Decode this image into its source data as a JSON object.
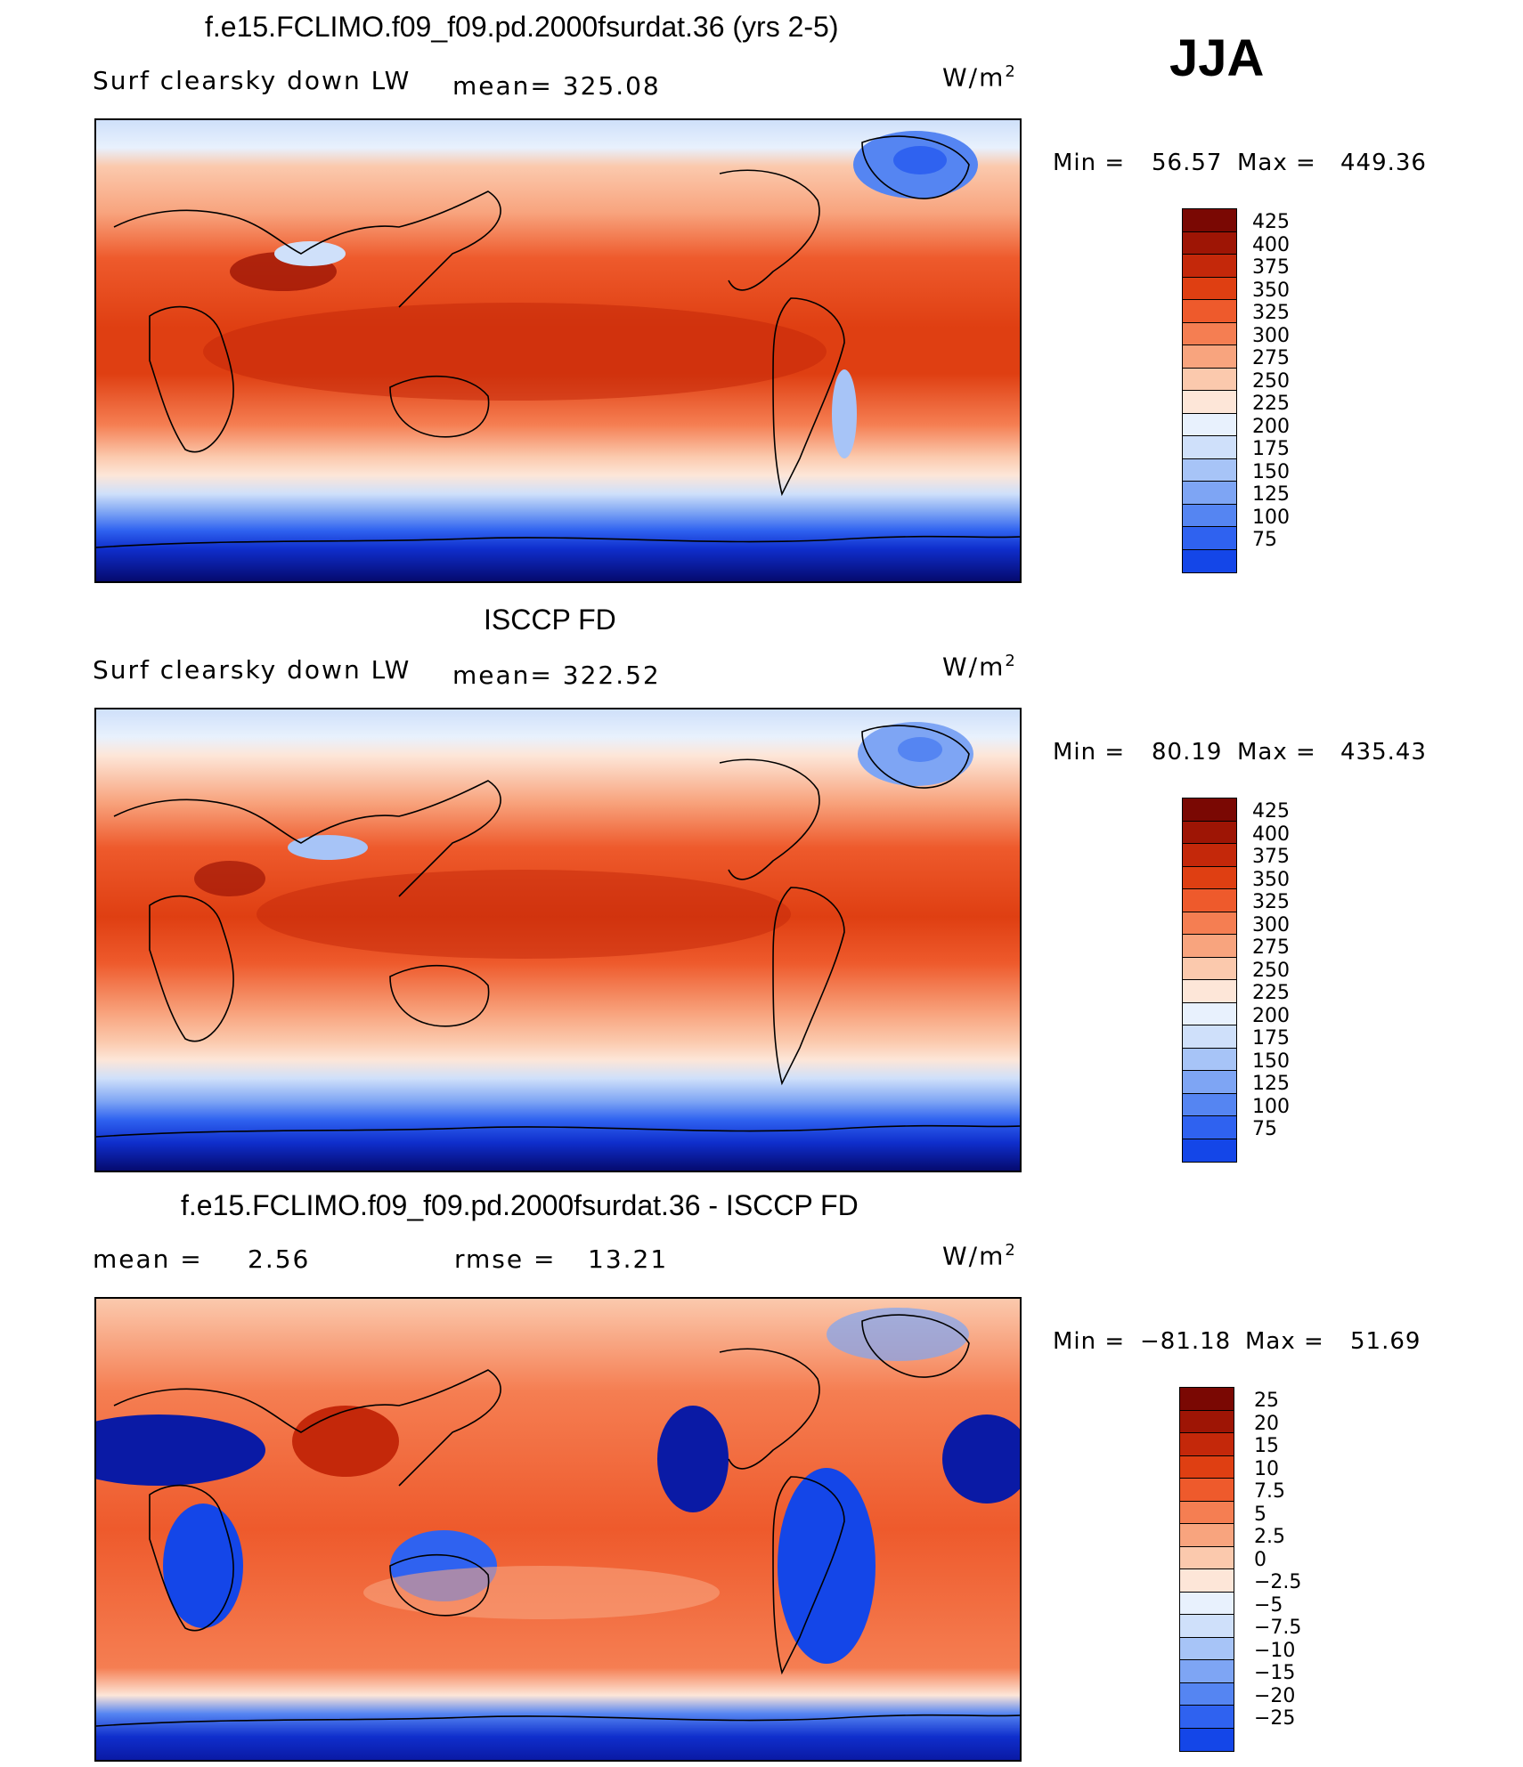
{
  "season": "JJA",
  "units": "W/m",
  "units_sup": "2",
  "colors": {
    "abs_scale": [
      "#050a6e",
      "#0a1aa5",
      "#0f2ecc",
      "#1446e8",
      "#2f62f0",
      "#5585f2",
      "#7ea5f4",
      "#a7c4f7",
      "#cfe0fa",
      "#e8f1fd",
      "#fde6d8",
      "#fbc9ad",
      "#f8a47e",
      "#f57e52",
      "#ee5a2c",
      "#df3f12",
      "#c4280a",
      "#9e1505",
      "#7a0803"
    ],
    "diff_scale": [
      "#050a6e",
      "#0a1aa5",
      "#0f2ecc",
      "#1446e8",
      "#2f62f0",
      "#5585f2",
      "#7ea5f4",
      "#a7c4f7",
      "#cfe0fa",
      "#e8f1fd",
      "#fde6d8",
      "#fbc9ad",
      "#f8a47e",
      "#f57e52",
      "#ee5a2c",
      "#df3f12",
      "#c4280a",
      "#9e1505",
      "#7a0803"
    ],
    "coast": "#000000"
  },
  "panels": [
    {
      "title": "f.e15.FCLIMO.f09_f09.pd.2000fsurdat.36 (yrs 2-5)",
      "left_label": "Surf clearsky down LW",
      "stat_label": "mean= 325.08",
      "min_text": "Min =",
      "min_value": "56.57",
      "max_text": "Max =",
      "max_value": "449.36",
      "colorbar_labels": [
        "425",
        "400",
        "375",
        "350",
        "325",
        "300",
        "275",
        "250",
        "225",
        "200",
        "175",
        "150",
        "125",
        "100",
        "75"
      ]
    },
    {
      "title": "ISCCP FD",
      "left_label": "Surf clearsky down LW",
      "stat_label": "mean= 322.52",
      "min_text": "Min =",
      "min_value": "80.19",
      "max_text": "Max =",
      "max_value": "435.43",
      "colorbar_labels": [
        "425",
        "400",
        "375",
        "350",
        "325",
        "300",
        "275",
        "250",
        "225",
        "200",
        "175",
        "150",
        "125",
        "100",
        "75"
      ]
    },
    {
      "title": "f.e15.FCLIMO.f09_f09.pd.2000fsurdat.36 - ISCCP FD",
      "left_label": "mean =",
      "left_value": "2.56",
      "stat_label": "rmse =",
      "stat_value": "13.21",
      "min_text": "Min =",
      "min_value": "−81.18",
      "max_text": "Max =",
      "max_value": "51.69",
      "colorbar_labels": [
        "25",
        "20",
        "15",
        "10",
        "7.5",
        "5",
        "2.5",
        "0",
        "−2.5",
        "−5",
        "−7.5",
        "−10",
        "−15",
        "−20",
        "−25"
      ]
    }
  ]
}
